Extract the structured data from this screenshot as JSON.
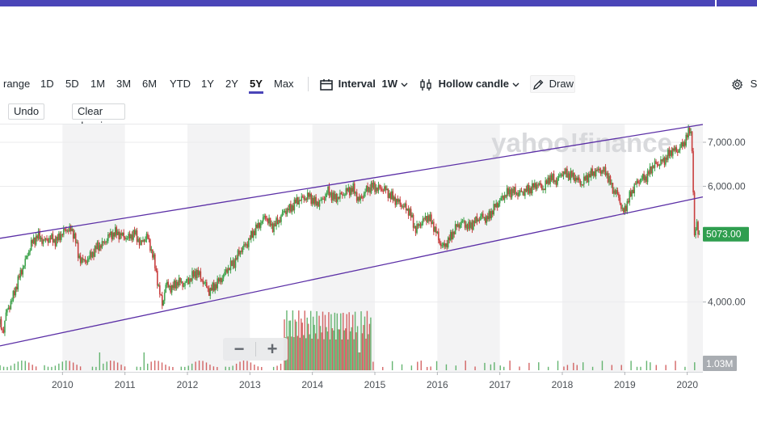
{
  "toolbar": {
    "range_label": "range",
    "ranges": [
      "1D",
      "5D",
      "1M",
      "3M",
      "6M",
      "YTD",
      "1Y",
      "2Y",
      "5Y",
      "Max"
    ],
    "active_range": "5Y",
    "interval_label": "Interval",
    "interval_value": "1W",
    "chart_type": "Hollow candle",
    "draw_label": "Draw",
    "settings_label": "Se"
  },
  "drawing_bar": {
    "undo_label": "Undo",
    "clear_label": "Clear drawings"
  },
  "watermark": "yahoo!finance",
  "colors": {
    "accent": "#4a45b8",
    "up": "#3fa34d",
    "down": "#c94040",
    "trendline": "#5b2fa6",
    "price_tag": "#2f9e4f",
    "volume_tag": "#a9adb2"
  },
  "chart_data": {
    "type": "line",
    "title": "",
    "xlabel": "",
    "ylabel": "",
    "scale": "log",
    "x_ticks": [
      "2010",
      "2011",
      "2012",
      "2013",
      "2014",
      "2015",
      "2016",
      "2017",
      "2018",
      "2019",
      "2020"
    ],
    "y_ticks": [
      "7,000.00",
      "6,000.00",
      "4,000.00"
    ],
    "ylim": [
      3150,
      7450
    ],
    "xlim": [
      2009.0,
      2020.25
    ],
    "current_price": "5073.00",
    "current_price_value": 5073,
    "volume_label": "1.03M",
    "series": [
      {
        "x": [
          2009.0,
          2009.05,
          2009.1,
          2009.2,
          2009.3,
          2009.4,
          2009.5,
          2009.6,
          2009.7,
          2009.8,
          2009.9,
          2010.0,
          2010.1,
          2010.2,
          2010.25,
          2010.35,
          2010.45,
          2010.55,
          2010.65,
          2010.75,
          2010.85,
          2010.95,
          2011.05,
          2011.15,
          2011.25,
          2011.35,
          2011.45,
          2011.55,
          2011.6,
          2011.65,
          2011.75,
          2011.85,
          2011.95,
          2012.05,
          2012.15,
          2012.25,
          2012.35,
          2012.45,
          2012.55,
          2012.65,
          2012.75,
          2012.85,
          2012.95,
          2013.05,
          2013.15,
          2013.25,
          2013.35,
          2013.45,
          2013.55,
          2013.65,
          2013.75,
          2013.85,
          2013.95,
          2014.05,
          2014.15,
          2014.25,
          2014.35,
          2014.45,
          2014.55,
          2014.65,
          2014.75,
          2014.85,
          2014.95,
          2015.05,
          2015.15,
          2015.25,
          2015.35,
          2015.45,
          2015.55,
          2015.65,
          2015.75,
          2015.85,
          2015.95,
          2016.05,
          2016.1,
          2016.2,
          2016.3,
          2016.4,
          2016.5,
          2016.6,
          2016.7,
          2016.8,
          2016.9,
          2017.0,
          2017.1,
          2017.2,
          2017.3,
          2017.4,
          2017.5,
          2017.6,
          2017.7,
          2017.8,
          2017.9,
          2018.0,
          2018.1,
          2018.2,
          2018.3,
          2018.4,
          2018.5,
          2018.6,
          2018.7,
          2018.8,
          2018.9,
          2018.97,
          2019.05,
          2019.15,
          2019.25,
          2019.35,
          2019.45,
          2019.55,
          2019.65,
          2019.75,
          2019.85,
          2019.95,
          2020.0,
          2020.05,
          2020.08,
          2020.1,
          2020.12,
          2020.15,
          2020.18,
          2020.2
        ],
        "y": [
          3700,
          3600,
          3850,
          4050,
          4350,
          4600,
          4900,
          5050,
          4950,
          5000,
          4950,
          5100,
          5180,
          5050,
          4700,
          4600,
          4700,
          4850,
          4900,
          5050,
          5100,
          5050,
          5000,
          5100,
          4900,
          5050,
          4700,
          4150,
          3950,
          4250,
          4200,
          4300,
          4250,
          4350,
          4450,
          4300,
          4150,
          4250,
          4350,
          4500,
          4600,
          4800,
          4900,
          5100,
          5250,
          5400,
          5200,
          5300,
          5500,
          5550,
          5700,
          5750,
          5800,
          5650,
          5700,
          5900,
          5750,
          5800,
          5900,
          5950,
          5700,
          5900,
          6000,
          5950,
          5950,
          5800,
          5700,
          5600,
          5500,
          5150,
          5300,
          5400,
          5200,
          4900,
          4850,
          5000,
          5200,
          5300,
          5200,
          5300,
          5400,
          5350,
          5550,
          5700,
          5850,
          5900,
          5850,
          5900,
          5950,
          6050,
          5950,
          6200,
          6100,
          6300,
          6250,
          6200,
          6050,
          6200,
          6300,
          6350,
          6300,
          5950,
          5800,
          5450,
          5700,
          6000,
          6150,
          6200,
          6450,
          6500,
          6600,
          6800,
          6800,
          7000,
          7150,
          7400,
          6800,
          5550,
          4900,
          5400,
          5000,
          5073
        ]
      }
    ],
    "trendlines": [
      {
        "from": [
          2009.0,
          5000
        ],
        "to": [
          2020.25,
          7450
        ]
      },
      {
        "from": [
          2009.0,
          3430
        ],
        "to": [
          2020.25,
          5780
        ]
      }
    ],
    "volume_spike_x": 2014.75,
    "grid": true
  }
}
